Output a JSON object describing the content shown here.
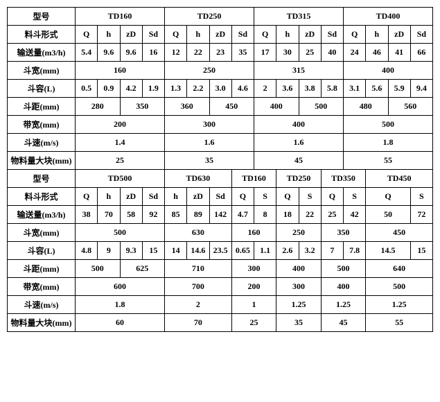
{
  "labels": {
    "model": "型号",
    "hopper_form": "料斗形式",
    "conveying": "输送量(m3/h)",
    "bucket_width": "斗宽(mm)",
    "bucket_capacity": "斗容(L)",
    "bucket_pitch": "斗距(mm)",
    "belt_width": "带宽(mm)",
    "bucket_speed": "斗速(m/s)",
    "material_block": "物料量大块(mm)"
  },
  "top": {
    "models": [
      "TD160",
      "TD250",
      "TD315",
      "TD400"
    ],
    "forms": [
      "Q",
      "h",
      "zD",
      "Sd",
      "Q",
      "h",
      "zD",
      "Sd",
      "Q",
      "h",
      "zD",
      "Sd",
      "Q",
      "h",
      "zD",
      "Sd"
    ],
    "conv": [
      "5.4",
      "9.6",
      "9.6",
      "16",
      "12",
      "22",
      "23",
      "35",
      "17",
      "30",
      "25",
      "40",
      "24",
      "46",
      "41",
      "66"
    ],
    "bw": [
      "160",
      "250",
      "315",
      "400"
    ],
    "cap": [
      "0.5",
      "0.9",
      "4.2",
      "1.9",
      "1.3",
      "2.2",
      "3.0",
      "4.6",
      "2",
      "3.6",
      "3.8",
      "5.8",
      "3.1",
      "5.6",
      "5.9",
      "9.4"
    ],
    "pitch": [
      "280",
      "350",
      "360",
      "450",
      "400",
      "500",
      "480",
      "560"
    ],
    "belt": [
      "200",
      "300",
      "400",
      "500"
    ],
    "speed": [
      "1.4",
      "1.6",
      "1.6",
      "1.8"
    ],
    "block": [
      "25",
      "35",
      "45",
      "55"
    ]
  },
  "bot": {
    "models": [
      "TD500",
      "TD630",
      "TD160",
      "TD250",
      "TD350",
      "TD450"
    ],
    "forms": [
      "Q",
      "h",
      "zD",
      "Sd",
      "h",
      "zD",
      "Sd",
      "Q",
      "S",
      "Q",
      "S",
      "Q",
      "S",
      "Q",
      "S"
    ],
    "conv": [
      "38",
      "70",
      "58",
      "92",
      "85",
      "89",
      "142",
      "4.7",
      "8",
      "18",
      "22",
      "25",
      "42",
      "50",
      "72"
    ],
    "bw": [
      "500",
      "630",
      "160",
      "250",
      "350",
      "450"
    ],
    "cap": [
      "4.8",
      "9",
      "9.3",
      "15",
      "14",
      "14.6",
      "23.5",
      "0.65",
      "1.1",
      "2.6",
      "3.2",
      "7",
      "7.8",
      "14.5",
      "15"
    ],
    "pitch": [
      "500",
      "625",
      "710",
      "300",
      "400",
      "500",
      "640"
    ],
    "belt": [
      "600",
      "700",
      "200",
      "300",
      "400",
      "500"
    ],
    "speed": [
      "1.8",
      "2",
      "1",
      "1.25",
      "1.25",
      "1.25"
    ],
    "block": [
      "60",
      "70",
      "25",
      "35",
      "45",
      "55"
    ]
  }
}
